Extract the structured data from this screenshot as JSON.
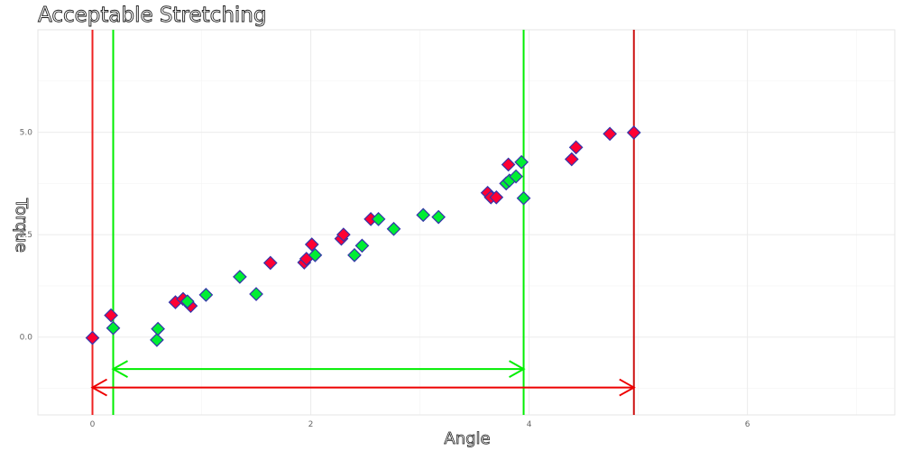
{
  "chart_data": {
    "type": "scatter",
    "title": "Acceptable Stretching",
    "xlabel": "Angle",
    "ylabel": "Torque",
    "xlim": [
      -0.5,
      7.35
    ],
    "ylim": [
      -1.9,
      7.5
    ],
    "x_ticks": [
      0,
      2,
      4,
      6
    ],
    "x_tick_labels": [
      "0",
      "2",
      "4",
      "6"
    ],
    "y_ticks": [
      0,
      2.5,
      5
    ],
    "y_tick_labels": [
      "0.0",
      "2.5",
      "5.0"
    ],
    "grid": true,
    "legend": "none",
    "marker": "diamond",
    "marker_outline_color": "#3333aa",
    "series": [
      {
        "color": "#ff0033",
        "points": [
          {
            "x": 0.0,
            "y": -0.02
          },
          {
            "x": 0.17,
            "y": 0.53
          },
          {
            "x": 0.76,
            "y": 0.85
          },
          {
            "x": 0.83,
            "y": 0.93
          },
          {
            "x": 0.9,
            "y": 0.76
          },
          {
            "x": 1.63,
            "y": 1.81
          },
          {
            "x": 1.94,
            "y": 1.82
          },
          {
            "x": 1.96,
            "y": 1.91
          },
          {
            "x": 2.01,
            "y": 2.26
          },
          {
            "x": 2.28,
            "y": 2.4
          },
          {
            "x": 2.3,
            "y": 2.5
          },
          {
            "x": 2.55,
            "y": 2.88
          },
          {
            "x": 3.62,
            "y": 3.52
          },
          {
            "x": 3.65,
            "y": 3.41
          },
          {
            "x": 3.7,
            "y": 3.41
          },
          {
            "x": 3.81,
            "y": 4.21
          },
          {
            "x": 4.39,
            "y": 4.34
          },
          {
            "x": 4.43,
            "y": 4.63
          },
          {
            "x": 4.74,
            "y": 4.96
          },
          {
            "x": 4.96,
            "y": 4.99
          }
        ]
      },
      {
        "color": "#00ee33",
        "points": [
          {
            "x": 0.19,
            "y": 0.22
          },
          {
            "x": 0.59,
            "y": -0.07
          },
          {
            "x": 0.6,
            "y": 0.2
          },
          {
            "x": 0.87,
            "y": 0.87
          },
          {
            "x": 1.04,
            "y": 1.03
          },
          {
            "x": 1.35,
            "y": 1.47
          },
          {
            "x": 1.5,
            "y": 1.05
          },
          {
            "x": 2.04,
            "y": 2.0
          },
          {
            "x": 2.4,
            "y": 2.0
          },
          {
            "x": 2.47,
            "y": 2.23
          },
          {
            "x": 2.62,
            "y": 2.88
          },
          {
            "x": 2.76,
            "y": 2.64
          },
          {
            "x": 3.03,
            "y": 2.98
          },
          {
            "x": 3.17,
            "y": 2.93
          },
          {
            "x": 3.79,
            "y": 3.75
          },
          {
            "x": 3.82,
            "y": 3.82
          },
          {
            "x": 3.88,
            "y": 3.92
          },
          {
            "x": 3.93,
            "y": 4.27
          },
          {
            "x": 3.95,
            "y": 3.39
          }
        ]
      }
    ],
    "vertical_lines": [
      {
        "x": 0.0,
        "color": "#ee2222"
      },
      {
        "x": 4.96,
        "color": "#cc1111"
      },
      {
        "x": 0.19,
        "color": "#00ee00"
      },
      {
        "x": 3.95,
        "color": "#00ee00"
      }
    ],
    "range_arrows": [
      {
        "x_start": 0.19,
        "x_end": 3.95,
        "y": -0.78,
        "color": "#00ee00"
      },
      {
        "x_start": 0.0,
        "x_end": 4.96,
        "y": -1.23,
        "color": "#ee0000"
      }
    ]
  }
}
